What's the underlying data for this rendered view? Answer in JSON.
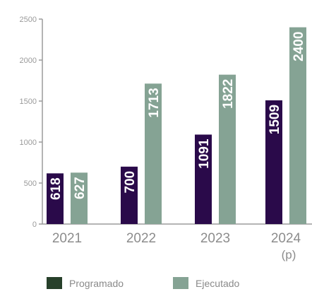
{
  "chart_data": {
    "type": "bar",
    "categories": [
      "2021",
      "2022",
      "2023",
      "2024"
    ],
    "category_sublabels": [
      "",
      "",
      "",
      "(p)"
    ],
    "series": [
      {
        "name": "Programado",
        "values": [
          618,
          700,
          1091,
          1509
        ],
        "color": "#2a0a4a"
      },
      {
        "name": "Ejecutado",
        "values": [
          627,
          1713,
          1822,
          2400
        ],
        "color": "#85a394"
      }
    ],
    "ylim": [
      0,
      2500
    ],
    "yticks": [
      0,
      500,
      1000,
      1500,
      2000,
      2500
    ],
    "grid": false,
    "legend_position": "bottom"
  },
  "colors": {
    "axis": "#9b9b9b",
    "legend_swatch_programado": "#27402a",
    "legend_swatch_ejecutado": "#85a394"
  }
}
